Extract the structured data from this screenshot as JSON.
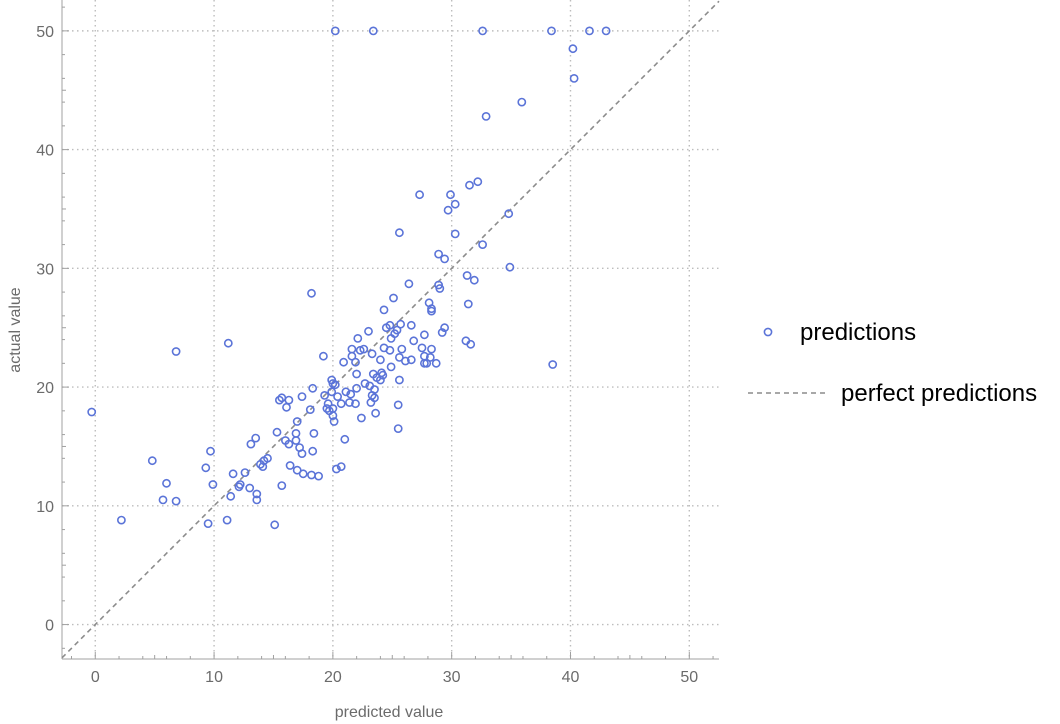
{
  "chart_data": {
    "type": "scatter",
    "xlabel": "predicted value",
    "ylabel": "actual value",
    "xlim": [
      -2.8,
      52.5
    ],
    "ylim": [
      -2.9,
      52.6
    ],
    "xticks": [
      0,
      10,
      20,
      30,
      40,
      50
    ],
    "yticks": [
      0,
      10,
      20,
      30,
      40,
      50
    ],
    "grid": true,
    "legend_position": "right",
    "series": [
      {
        "name": "predictions",
        "kind": "points",
        "color": "#5b74d8",
        "points": [
          [
            20.2,
            50.0
          ],
          [
            23.4,
            50.0
          ],
          [
            32.6,
            50.0
          ],
          [
            38.4,
            50.0
          ],
          [
            41.6,
            50.0
          ],
          [
            43.0,
            50.0
          ],
          [
            40.2,
            48.5
          ],
          [
            40.3,
            46.0
          ],
          [
            35.9,
            44.0
          ],
          [
            32.9,
            42.8
          ],
          [
            32.2,
            37.3
          ],
          [
            31.5,
            37.0
          ],
          [
            27.3,
            36.2
          ],
          [
            29.9,
            36.2
          ],
          [
            30.3,
            35.4
          ],
          [
            29.7,
            34.9
          ],
          [
            34.8,
            34.6
          ],
          [
            25.6,
            33.0
          ],
          [
            30.3,
            32.9
          ],
          [
            32.6,
            32.0
          ],
          [
            28.9,
            31.2
          ],
          [
            29.4,
            30.8
          ],
          [
            34.9,
            30.1
          ],
          [
            31.3,
            29.4
          ],
          [
            31.9,
            29.0
          ],
          [
            26.4,
            28.7
          ],
          [
            28.9,
            28.6
          ],
          [
            29.0,
            28.3
          ],
          [
            18.2,
            27.9
          ],
          [
            25.1,
            27.5
          ],
          [
            28.1,
            27.1
          ],
          [
            31.4,
            27.0
          ],
          [
            28.3,
            26.6
          ],
          [
            28.3,
            26.4
          ],
          [
            24.3,
            26.5
          ],
          [
            24.8,
            25.2
          ],
          [
            26.6,
            25.2
          ],
          [
            24.5,
            25.0
          ],
          [
            25.7,
            25.3
          ],
          [
            25.4,
            24.8
          ],
          [
            29.4,
            25.0
          ],
          [
            29.2,
            24.6
          ],
          [
            27.7,
            24.4
          ],
          [
            23.0,
            24.7
          ],
          [
            25.2,
            24.5
          ],
          [
            22.1,
            24.1
          ],
          [
            31.2,
            23.9
          ],
          [
            31.6,
            23.6
          ],
          [
            26.8,
            23.9
          ],
          [
            24.9,
            24.1
          ],
          [
            11.2,
            23.7
          ],
          [
            6.8,
            23.0
          ],
          [
            21.6,
            23.2
          ],
          [
            22.3,
            23.1
          ],
          [
            22.6,
            23.2
          ],
          [
            24.3,
            23.3
          ],
          [
            24.8,
            23.1
          ],
          [
            25.8,
            23.2
          ],
          [
            27.5,
            23.3
          ],
          [
            28.3,
            23.2
          ],
          [
            19.2,
            22.6
          ],
          [
            21.6,
            22.6
          ],
          [
            23.3,
            22.8
          ],
          [
            25.6,
            22.5
          ],
          [
            27.7,
            22.6
          ],
          [
            28.2,
            22.5
          ],
          [
            24.0,
            22.3
          ],
          [
            26.1,
            22.2
          ],
          [
            26.6,
            22.3
          ],
          [
            20.9,
            22.1
          ],
          [
            21.9,
            22.1
          ],
          [
            24.9,
            21.7
          ],
          [
            27.7,
            22.0
          ],
          [
            27.9,
            22.0
          ],
          [
            28.7,
            22.0
          ],
          [
            38.5,
            21.9
          ],
          [
            23.4,
            21.1
          ],
          [
            24.1,
            21.2
          ],
          [
            24.2,
            21.0
          ],
          [
            22.0,
            21.1
          ],
          [
            23.7,
            20.8
          ],
          [
            24.0,
            20.6
          ],
          [
            25.6,
            20.6
          ],
          [
            19.9,
            20.6
          ],
          [
            20.0,
            20.3
          ],
          [
            20.2,
            20.2
          ],
          [
            22.7,
            20.3
          ],
          [
            23.1,
            20.1
          ],
          [
            22.0,
            19.9
          ],
          [
            23.5,
            19.8
          ],
          [
            18.3,
            19.9
          ],
          [
            19.9,
            19.6
          ],
          [
            21.1,
            19.6
          ],
          [
            21.5,
            19.4
          ],
          [
            19.3,
            19.3
          ],
          [
            20.4,
            19.2
          ],
          [
            23.3,
            19.3
          ],
          [
            23.5,
            19.1
          ],
          [
            15.7,
            19.1
          ],
          [
            15.5,
            18.9
          ],
          [
            16.3,
            18.9
          ],
          [
            17.4,
            19.2
          ],
          [
            19.6,
            18.6
          ],
          [
            20.7,
            18.6
          ],
          [
            21.4,
            18.7
          ],
          [
            23.2,
            18.7
          ],
          [
            20.0,
            18.2
          ],
          [
            19.5,
            18.2
          ],
          [
            21.9,
            18.6
          ],
          [
            25.5,
            18.5
          ],
          [
            16.1,
            18.3
          ],
          [
            18.1,
            18.1
          ],
          [
            19.7,
            18.0
          ],
          [
            20.0,
            17.6
          ],
          [
            22.4,
            17.4
          ],
          [
            23.6,
            17.8
          ],
          [
            -0.3,
            17.9
          ],
          [
            17.0,
            17.1
          ],
          [
            20.1,
            17.1
          ],
          [
            18.4,
            16.1
          ],
          [
            25.5,
            16.5
          ],
          [
            15.3,
            16.2
          ],
          [
            16.9,
            16.1
          ],
          [
            21.0,
            15.6
          ],
          [
            13.5,
            15.7
          ],
          [
            16.0,
            15.5
          ],
          [
            16.9,
            15.5
          ],
          [
            17.2,
            14.9
          ],
          [
            13.1,
            15.2
          ],
          [
            16.3,
            15.2
          ],
          [
            18.3,
            14.6
          ],
          [
            9.7,
            14.6
          ],
          [
            17.4,
            14.4
          ],
          [
            14.5,
            14.0
          ],
          [
            14.2,
            13.8
          ],
          [
            4.8,
            13.8
          ],
          [
            13.9,
            13.5
          ],
          [
            14.1,
            13.3
          ],
          [
            16.4,
            13.4
          ],
          [
            9.3,
            13.2
          ],
          [
            20.7,
            13.3
          ],
          [
            20.3,
            13.1
          ],
          [
            17.0,
            13.0
          ],
          [
            11.6,
            12.7
          ],
          [
            12.6,
            12.8
          ],
          [
            17.5,
            12.7
          ],
          [
            18.2,
            12.6
          ],
          [
            18.8,
            12.5
          ],
          [
            6.0,
            11.9
          ],
          [
            12.2,
            11.8
          ],
          [
            12.1,
            11.6
          ],
          [
            9.9,
            11.8
          ],
          [
            13.0,
            11.5
          ],
          [
            15.7,
            11.7
          ],
          [
            11.4,
            10.8
          ],
          [
            13.6,
            11.0
          ],
          [
            13.6,
            10.5
          ],
          [
            5.7,
            10.5
          ],
          [
            6.8,
            10.4
          ],
          [
            11.1,
            8.8
          ],
          [
            9.5,
            8.5
          ],
          [
            15.1,
            8.4
          ],
          [
            2.2,
            8.8
          ]
        ]
      },
      {
        "name": "perfect predictions",
        "kind": "line",
        "color": "#8c8c8c",
        "x": [
          -2.8,
          52.5
        ],
        "y": [
          -2.8,
          52.5
        ]
      }
    ]
  }
}
